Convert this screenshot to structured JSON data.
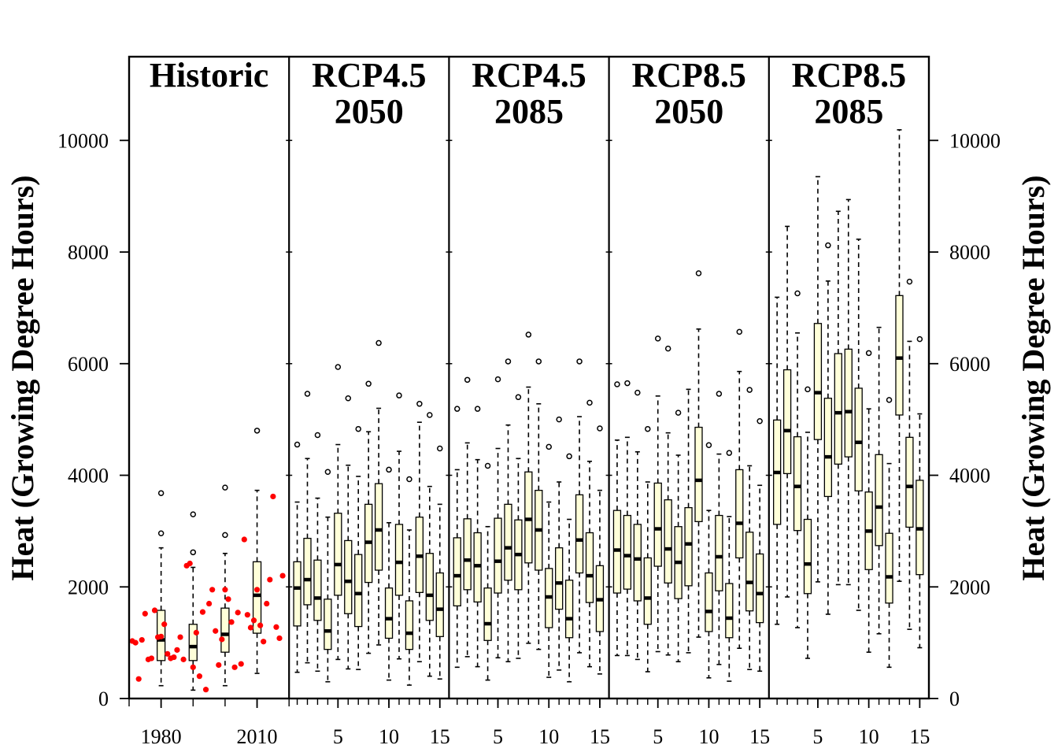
{
  "chart_data": {
    "type": "box",
    "ylabel_left": "Heat (Growing Degree Hours)",
    "ylabel_right": "Heat (Growing Degree Hours)",
    "ylim": [
      0,
      11500
    ],
    "yticks": [
      0,
      2000,
      4000,
      6000,
      8000,
      10000
    ],
    "grid": false,
    "box_color": "#FFFFD9",
    "point_color": "#FF0000",
    "panels": [
      {
        "title_lines": [
          "Historic"
        ],
        "x_tick_labels": [
          "1980",
          "2010"
        ],
        "xlim": [
          1970,
          2020
        ],
        "x_tick_values": [
          1980,
          2010
        ],
        "boxes": [
          {
            "x": 1980,
            "min": 230,
            "q1": 680,
            "median": 1050,
            "q3": 1580,
            "max": 2700,
            "outliers": [
              2960,
              3680
            ]
          },
          {
            "x": 1990,
            "min": 150,
            "q1": 680,
            "median": 930,
            "q3": 1330,
            "max": 2350,
            "outliers": [
              2620,
              3300
            ]
          },
          {
            "x": 2000,
            "min": 230,
            "q1": 830,
            "median": 1150,
            "q3": 1620,
            "max": 2600,
            "outliers": [
              2930,
              3780
            ]
          },
          {
            "x": 2010,
            "min": 450,
            "q1": 1170,
            "median": 1850,
            "q3": 2450,
            "max": 3730,
            "outliers": [
              4800
            ]
          }
        ],
        "points": [
          {
            "x": 1971,
            "y": 1030
          },
          {
            "x": 1972,
            "y": 1000
          },
          {
            "x": 1973,
            "y": 350
          },
          {
            "x": 1974,
            "y": 1050
          },
          {
            "x": 1975,
            "y": 1520
          },
          {
            "x": 1976,
            "y": 700
          },
          {
            "x": 1977,
            "y": 720
          },
          {
            "x": 1978,
            "y": 1580
          },
          {
            "x": 1979,
            "y": 1100
          },
          {
            "x": 1980,
            "y": 1110
          },
          {
            "x": 1981,
            "y": 1330
          },
          {
            "x": 1982,
            "y": 800
          },
          {
            "x": 1983,
            "y": 720
          },
          {
            "x": 1984,
            "y": 740
          },
          {
            "x": 1985,
            "y": 870
          },
          {
            "x": 1986,
            "y": 1100
          },
          {
            "x": 1987,
            "y": 700
          },
          {
            "x": 1988,
            "y": 2380
          },
          {
            "x": 1989,
            "y": 2420
          },
          {
            "x": 1990,
            "y": 560
          },
          {
            "x": 1991,
            "y": 1180
          },
          {
            "x": 1992,
            "y": 400
          },
          {
            "x": 1993,
            "y": 1550
          },
          {
            "x": 1994,
            "y": 160
          },
          {
            "x": 1995,
            "y": 1700
          },
          {
            "x": 1996,
            "y": 1950
          },
          {
            "x": 1997,
            "y": 1210
          },
          {
            "x": 1998,
            "y": 600
          },
          {
            "x": 1999,
            "y": 1060
          },
          {
            "x": 2000,
            "y": 1950
          },
          {
            "x": 2001,
            "y": 1780
          },
          {
            "x": 2002,
            "y": 1370
          },
          {
            "x": 2003,
            "y": 560
          },
          {
            "x": 2004,
            "y": 1540
          },
          {
            "x": 2005,
            "y": 620
          },
          {
            "x": 2006,
            "y": 2850
          },
          {
            "x": 2007,
            "y": 1500
          },
          {
            "x": 2008,
            "y": 1270
          },
          {
            "x": 2009,
            "y": 1400
          },
          {
            "x": 2010,
            "y": 1950
          },
          {
            "x": 2011,
            "y": 1310
          },
          {
            "x": 2012,
            "y": 1020
          },
          {
            "x": 2013,
            "y": 1700
          },
          {
            "x": 2014,
            "y": 2130
          },
          {
            "x": 2015,
            "y": 3620
          },
          {
            "x": 2016,
            "y": 1280
          },
          {
            "x": 2017,
            "y": 1080
          },
          {
            "x": 2018,
            "y": 2200
          }
        ]
      },
      {
        "title_lines": [
          "RCP4.5",
          "2050"
        ],
        "x_tick_labels": [
          "5",
          "10",
          "15"
        ],
        "x_tick_values": [
          5,
          10,
          15
        ],
        "xlim": [
          0.2,
          15.9
        ],
        "boxes": [
          {
            "x": 1,
            "min": 470,
            "q1": 1300,
            "median": 1980,
            "q3": 2450,
            "max": 3520,
            "outliers": [
              4550
            ]
          },
          {
            "x": 2,
            "min": 640,
            "q1": 1680,
            "median": 2130,
            "q3": 2870,
            "max": 4300,
            "outliers": [
              5460
            ]
          },
          {
            "x": 3,
            "min": 490,
            "q1": 1400,
            "median": 1800,
            "q3": 2480,
            "max": 3590,
            "outliers": [
              4720
            ]
          },
          {
            "x": 4,
            "min": 300,
            "q1": 880,
            "median": 1210,
            "q3": 1780,
            "max": 3250,
            "outliers": [
              4060
            ]
          },
          {
            "x": 5,
            "min": 700,
            "q1": 1850,
            "median": 2400,
            "q3": 3320,
            "max": 4550,
            "outliers": [
              5940
            ]
          },
          {
            "x": 6,
            "min": 530,
            "q1": 1520,
            "median": 2100,
            "q3": 2830,
            "max": 4180,
            "outliers": [
              5380
            ]
          },
          {
            "x": 7,
            "min": 520,
            "q1": 1290,
            "median": 1880,
            "q3": 2580,
            "max": 3980,
            "outliers": [
              4830
            ]
          },
          {
            "x": 8,
            "min": 810,
            "q1": 2080,
            "median": 2800,
            "q3": 3480,
            "max": 4780,
            "outliers": [
              5640
            ]
          },
          {
            "x": 9,
            "min": 960,
            "q1": 2300,
            "median": 3020,
            "q3": 3850,
            "max": 5200,
            "outliers": [
              6370
            ]
          },
          {
            "x": 10,
            "min": 330,
            "q1": 1080,
            "median": 1430,
            "q3": 1980,
            "max": 3150,
            "outliers": [
              4100
            ]
          },
          {
            "x": 11,
            "min": 710,
            "q1": 1850,
            "median": 2440,
            "q3": 3120,
            "max": 4430,
            "outliers": [
              5430
            ]
          },
          {
            "x": 12,
            "min": 240,
            "q1": 880,
            "median": 1170,
            "q3": 1750,
            "max": 3020,
            "outliers": [
              3930
            ]
          },
          {
            "x": 13,
            "min": 660,
            "q1": 1900,
            "median": 2550,
            "q3": 3250,
            "max": 4950,
            "outliers": [
              5280
            ]
          },
          {
            "x": 14,
            "min": 400,
            "q1": 1400,
            "median": 1850,
            "q3": 2600,
            "max": 3800,
            "outliers": [
              5080
            ]
          },
          {
            "x": 15,
            "min": 350,
            "q1": 1110,
            "median": 1600,
            "q3": 2250,
            "max": 3480,
            "outliers": [
              4480
            ]
          }
        ]
      },
      {
        "title_lines": [
          "RCP4.5",
          "2085"
        ],
        "x_tick_labels": [
          "5",
          "10",
          "15"
        ],
        "x_tick_values": [
          5,
          10,
          15
        ],
        "xlim": [
          0.2,
          15.9
        ],
        "boxes": [
          {
            "x": 1,
            "min": 560,
            "q1": 1660,
            "median": 2200,
            "q3": 2880,
            "max": 4100,
            "outliers": [
              5190
            ]
          },
          {
            "x": 2,
            "min": 750,
            "q1": 1950,
            "median": 2480,
            "q3": 3220,
            "max": 4580,
            "outliers": [
              5710
            ]
          },
          {
            "x": 3,
            "min": 570,
            "q1": 1730,
            "median": 2380,
            "q3": 2970,
            "max": 4280,
            "outliers": [
              5190
            ]
          },
          {
            "x": 4,
            "min": 330,
            "q1": 1040,
            "median": 1340,
            "q3": 1980,
            "max": 3080,
            "outliers": [
              4170
            ]
          },
          {
            "x": 5,
            "min": 730,
            "q1": 1890,
            "median": 2460,
            "q3": 3230,
            "max": 4480,
            "outliers": [
              5720
            ]
          },
          {
            "x": 6,
            "min": 660,
            "q1": 2120,
            "median": 2700,
            "q3": 3480,
            "max": 4900,
            "outliers": [
              6040
            ]
          },
          {
            "x": 7,
            "min": 720,
            "q1": 1950,
            "median": 2580,
            "q3": 3200,
            "max": 4300,
            "outliers": [
              5400
            ]
          },
          {
            "x": 8,
            "min": 990,
            "q1": 2430,
            "median": 3210,
            "q3": 4060,
            "max": 5580,
            "outliers": [
              6520
            ]
          },
          {
            "x": 9,
            "min": 880,
            "q1": 2300,
            "median": 3020,
            "q3": 3730,
            "max": 5280,
            "outliers": [
              6040
            ]
          },
          {
            "x": 10,
            "min": 380,
            "q1": 1270,
            "median": 1820,
            "q3": 2330,
            "max": 3520,
            "outliers": [
              4510
            ]
          },
          {
            "x": 11,
            "min": 510,
            "q1": 1600,
            "median": 2070,
            "q3": 2700,
            "max": 3880,
            "outliers": [
              5000
            ]
          },
          {
            "x": 12,
            "min": 300,
            "q1": 1090,
            "median": 1430,
            "q3": 2120,
            "max": 3210,
            "outliers": [
              4340
            ]
          },
          {
            "x": 13,
            "min": 820,
            "q1": 2250,
            "median": 2840,
            "q3": 3650,
            "max": 5050,
            "outliers": [
              6040
            ]
          },
          {
            "x": 14,
            "min": 570,
            "q1": 1720,
            "median": 2200,
            "q3": 2970,
            "max": 4250,
            "outliers": [
              5300
            ]
          },
          {
            "x": 15,
            "min": 440,
            "q1": 1200,
            "median": 1770,
            "q3": 2380,
            "max": 3730,
            "outliers": [
              4840
            ]
          }
        ]
      },
      {
        "title_lines": [
          "RCP8.5",
          "2050"
        ],
        "x_tick_labels": [
          "5",
          "10",
          "15"
        ],
        "x_tick_values": [
          5,
          10,
          15
        ],
        "xlim": [
          0.2,
          15.9
        ],
        "boxes": [
          {
            "x": 1,
            "min": 770,
            "q1": 1890,
            "median": 2660,
            "q3": 3370,
            "max": 4630,
            "outliers": [
              5630
            ]
          },
          {
            "x": 2,
            "min": 770,
            "q1": 1960,
            "median": 2560,
            "q3": 3280,
            "max": 4680,
            "outliers": [
              5650
            ]
          },
          {
            "x": 3,
            "min": 700,
            "q1": 1750,
            "median": 2500,
            "q3": 3120,
            "max": 4420,
            "outliers": [
              5480
            ]
          },
          {
            "x": 4,
            "min": 480,
            "q1": 1330,
            "median": 1800,
            "q3": 2520,
            "max": 3880,
            "outliers": [
              4830
            ]
          },
          {
            "x": 5,
            "min": 840,
            "q1": 2370,
            "median": 3040,
            "q3": 3860,
            "max": 5420,
            "outliers": [
              6450
            ]
          },
          {
            "x": 6,
            "min": 780,
            "q1": 2070,
            "median": 2680,
            "q3": 3560,
            "max": 4760,
            "outliers": [
              6270
            ]
          },
          {
            "x": 7,
            "min": 660,
            "q1": 1790,
            "median": 2440,
            "q3": 3080,
            "max": 4360,
            "outliers": [
              5120
            ]
          },
          {
            "x": 8,
            "min": 820,
            "q1": 2020,
            "median": 2770,
            "q3": 3420,
            "max": 5540,
            "outliers": []
          },
          {
            "x": 9,
            "min": 1100,
            "q1": 3170,
            "median": 3910,
            "q3": 4860,
            "max": 6620,
            "outliers": [
              7620
            ]
          },
          {
            "x": 10,
            "min": 370,
            "q1": 1200,
            "median": 1560,
            "q3": 2250,
            "max": 3370,
            "outliers": [
              4540
            ]
          },
          {
            "x": 11,
            "min": 610,
            "q1": 1930,
            "median": 2540,
            "q3": 3280,
            "max": 4380,
            "outliers": [
              5460
            ]
          },
          {
            "x": 12,
            "min": 310,
            "q1": 1090,
            "median": 1440,
            "q3": 2060,
            "max": 3260,
            "outliers": [
              4400
            ]
          },
          {
            "x": 13,
            "min": 900,
            "q1": 2520,
            "median": 3140,
            "q3": 4100,
            "max": 5860,
            "outliers": [
              6570
            ]
          },
          {
            "x": 14,
            "min": 520,
            "q1": 1570,
            "median": 2080,
            "q3": 2980,
            "max": 4170,
            "outliers": [
              5530
            ]
          },
          {
            "x": 15,
            "min": 490,
            "q1": 1360,
            "median": 1880,
            "q3": 2590,
            "max": 3820,
            "outliers": [
              4970
            ]
          }
        ]
      },
      {
        "title_lines": [
          "RCP8.5",
          "2085"
        ],
        "x_tick_labels": [
          "5",
          "10",
          "15"
        ],
        "x_tick_values": [
          5,
          10,
          15
        ],
        "xlim": [
          0.2,
          15.9
        ],
        "boxes": [
          {
            "x": 1,
            "min": 1330,
            "q1": 3120,
            "median": 4050,
            "q3": 4990,
            "max": 7190,
            "outliers": []
          },
          {
            "x": 2,
            "min": 1820,
            "q1": 4030,
            "median": 4800,
            "q3": 5890,
            "max": 8460,
            "outliers": []
          },
          {
            "x": 3,
            "min": 1270,
            "q1": 3010,
            "median": 3800,
            "q3": 4690,
            "max": 6550,
            "outliers": [
              7260
            ]
          },
          {
            "x": 4,
            "min": 720,
            "q1": 1880,
            "median": 2410,
            "q3": 3210,
            "max": 4770,
            "outliers": [
              5540
            ]
          },
          {
            "x": 5,
            "min": 2090,
            "q1": 4640,
            "median": 5480,
            "q3": 6720,
            "max": 9350,
            "outliers": []
          },
          {
            "x": 6,
            "min": 1510,
            "q1": 3620,
            "median": 4330,
            "q3": 5380,
            "max": 7480,
            "outliers": [
              8120
            ]
          },
          {
            "x": 7,
            "min": 2040,
            "q1": 4200,
            "median": 5120,
            "q3": 6180,
            "max": 8730,
            "outliers": []
          },
          {
            "x": 8,
            "min": 2040,
            "q1": 4330,
            "median": 5140,
            "q3": 6260,
            "max": 8940,
            "outliers": []
          },
          {
            "x": 9,
            "min": 1580,
            "q1": 3720,
            "median": 4590,
            "q3": 5560,
            "max": 8230,
            "outliers": []
          },
          {
            "x": 10,
            "min": 830,
            "q1": 2310,
            "median": 3000,
            "q3": 3700,
            "max": 5190,
            "outliers": [
              6190
            ]
          },
          {
            "x": 11,
            "min": 1160,
            "q1": 2740,
            "median": 3430,
            "q3": 4370,
            "max": 6650,
            "outliers": []
          },
          {
            "x": 12,
            "min": 560,
            "q1": 1710,
            "median": 2180,
            "q3": 2960,
            "max": 4210,
            "outliers": [
              5350
            ]
          },
          {
            "x": 13,
            "min": 2100,
            "q1": 5080,
            "median": 6100,
            "q3": 7220,
            "max": 10190,
            "outliers": []
          },
          {
            "x": 14,
            "min": 1240,
            "q1": 3070,
            "median": 3800,
            "q3": 4680,
            "max": 6400,
            "outliers": [
              7470
            ]
          },
          {
            "x": 15,
            "min": 910,
            "q1": 2220,
            "median": 3040,
            "q3": 3910,
            "max": 5100,
            "outliers": [
              6440
            ]
          }
        ]
      }
    ]
  }
}
